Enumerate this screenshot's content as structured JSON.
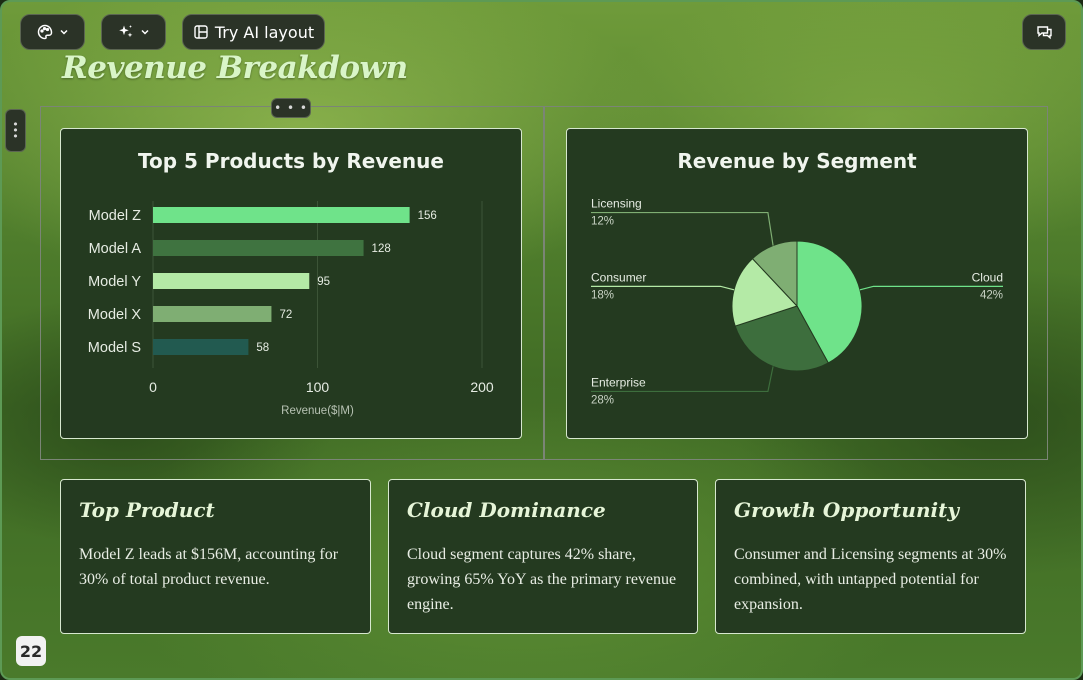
{
  "toolbar": {
    "theme_icon": "palette-icon",
    "ai_icon": "sparkle-icon",
    "ai_layout_icon": "layout-icon",
    "ai_layout_label": "Try AI layout",
    "comment_icon": "comment-icon"
  },
  "slide": {
    "title": "Revenue Breakdown",
    "page_number": "22"
  },
  "chart_data": [
    {
      "type": "bar",
      "orientation": "horizontal",
      "title": "Top 5 Products by Revenue",
      "categories": [
        "Model Z",
        "Model A",
        "Model Y",
        "Model X",
        "Model S"
      ],
      "values": [
        156,
        128,
        95,
        72,
        58
      ],
      "bar_colors": [
        "#6fe38a",
        "#3f7340",
        "#b4eaa6",
        "#7fae73",
        "#225a50"
      ],
      "xlabel": "Revenue($|M)",
      "xlim": [
        0,
        200
      ],
      "xticks": [
        "0",
        "100",
        "200"
      ],
      "grid": true
    },
    {
      "type": "pie",
      "title": "Revenue by Segment",
      "slices": [
        {
          "label": "Cloud",
          "value": 42,
          "pct_label": "42%",
          "color": "#6fe38a"
        },
        {
          "label": "Enterprise",
          "value": 28,
          "pct_label": "28%",
          "color": "#3d6e3d"
        },
        {
          "label": "Consumer",
          "value": 18,
          "pct_label": "18%",
          "color": "#b4eaa6"
        },
        {
          "label": "Licensing",
          "value": 12,
          "pct_label": "12%",
          "color": "#7fae73"
        }
      ]
    }
  ],
  "insights": [
    {
      "title": "Top Product",
      "body": "Model Z leads at $156M, accounting for 30% of total product revenue."
    },
    {
      "title": "Cloud Dominance",
      "body": "Cloud segment captures 42% share, growing 65% YoY as the primary revenue engine."
    },
    {
      "title": "Growth Opportunity",
      "body": "Consumer and Licensing segments at 30% combined, with untapped potential for expansion."
    }
  ],
  "colors": {
    "card_bg": "#243a20",
    "card_border": "#d7e8cf",
    "title": "#d9f5c8"
  }
}
